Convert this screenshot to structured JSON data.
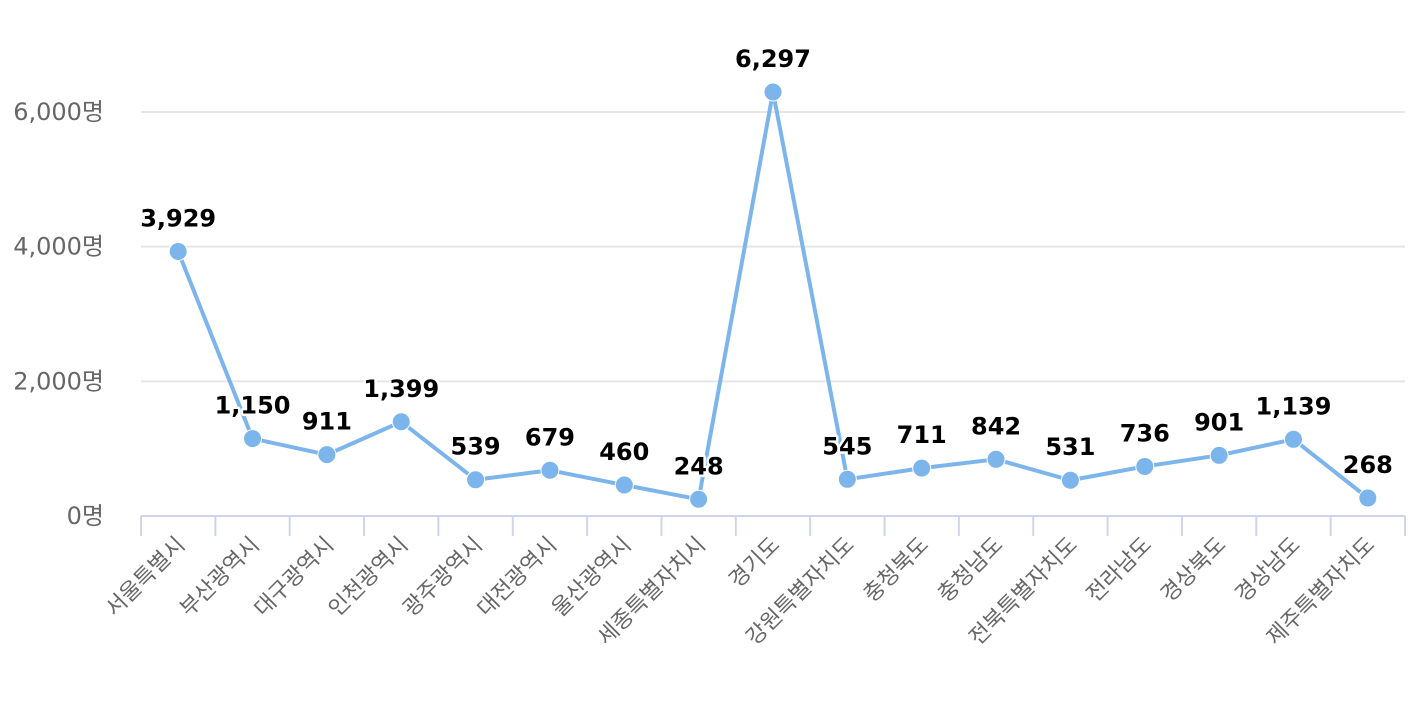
{
  "chart_data": {
    "type": "line",
    "categories": [
      "서울특별시",
      "부산광역시",
      "대구광역시",
      "인천광역시",
      "광주광역시",
      "대전광역시",
      "울산광역시",
      "세종특별자치시",
      "경기도",
      "강원특별자치도",
      "충청북도",
      "충청남도",
      "전북특별자치도",
      "전라남도",
      "경상북도",
      "경상남도",
      "제주특별자치도"
    ],
    "values": [
      3929,
      1150,
      911,
      1399,
      539,
      679,
      460,
      248,
      6297,
      545,
      711,
      842,
      531,
      736,
      901,
      1139,
      268
    ],
    "data_labels": [
      "3,929",
      "1,150",
      "911",
      "1,399",
      "539",
      "679",
      "460",
      "248",
      "6,297",
      "545",
      "711",
      "842",
      "531",
      "736",
      "901",
      "1,139",
      "268"
    ],
    "y_ticks": [
      0,
      2000,
      4000,
      6000
    ],
    "y_tick_labels": [
      "0명",
      "2,000명",
      "4,000명",
      "6,000명"
    ],
    "ylim": [
      0,
      6000
    ],
    "grid": true,
    "legend": "none",
    "colors": {
      "line": "#7cb5ec",
      "grid": "#e6e6e6",
      "axis": "#ccd6eb",
      "tick_text": "#666666",
      "label_text": "#000000"
    }
  }
}
